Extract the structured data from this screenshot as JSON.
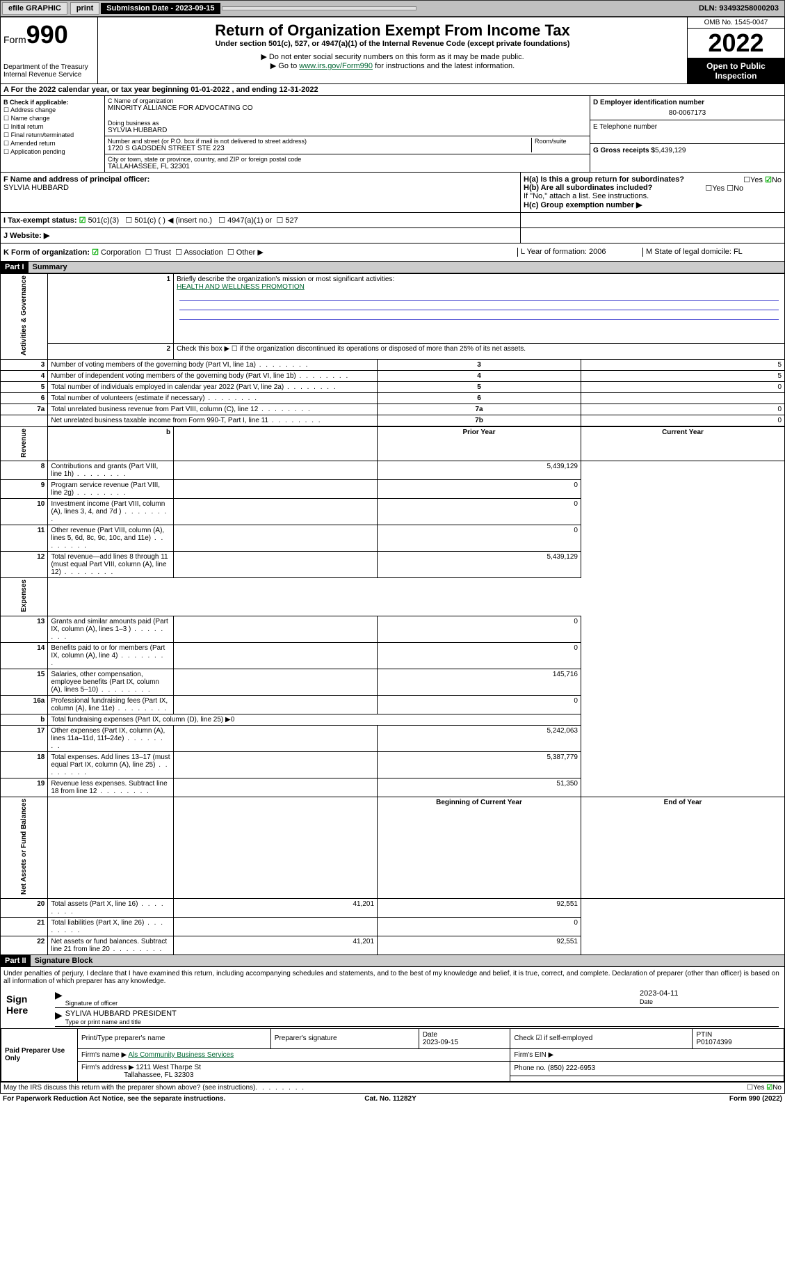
{
  "topbar": {
    "efile": "efile GRAPHIC",
    "print": "print",
    "sub_label": "Submission Date - 2023-09-15",
    "dln": "DLN: 93493258000203"
  },
  "header": {
    "form_word": "Form",
    "form_num": "990",
    "dept": "Department of the Treasury",
    "irs": "Internal Revenue Service",
    "title": "Return of Organization Exempt From Income Tax",
    "sub1": "Under section 501(c), 527, or 4947(a)(1) of the Internal Revenue Code (except private foundations)",
    "sub2": "▶ Do not enter social security numbers on this form as it may be made public.",
    "sub3_pre": "▶ Go to ",
    "sub3_link": "www.irs.gov/Form990",
    "sub3_post": " for instructions and the latest information.",
    "omb": "OMB No. 1545-0047",
    "year": "2022",
    "open": "Open to Public Inspection"
  },
  "rowA": "A For the 2022 calendar year, or tax year beginning 01-01-2022   , and ending 12-31-2022",
  "colB": {
    "hdr": "B Check if applicable:",
    "opts": [
      "Address change",
      "Name change",
      "Initial return",
      "Final return/terminated",
      "Amended return",
      "Application pending"
    ]
  },
  "colC": {
    "name_lbl": "C Name of organization",
    "name": "MINORITY ALLIANCE FOR ADVOCATING CO",
    "dba_lbl": "Doing business as",
    "dba": "SYLVIA HUBBARD",
    "addr_lbl": "Number and street (or P.O. box if mail is not delivered to street address)",
    "room_lbl": "Room/suite",
    "addr": "1720 S GADSDEN STREET STE 223",
    "city_lbl": "City or town, state or province, country, and ZIP or foreign postal code",
    "city": "TALLAHASSEE, FL  32301"
  },
  "colDE": {
    "d_lbl": "D Employer identification number",
    "d_val": "80-0067173",
    "e_lbl": "E Telephone number",
    "g_lbl": "G Gross receipts $",
    "g_val": "5,439,129"
  },
  "rowF": {
    "f_lbl": "F  Name and address of principal officer:",
    "f_val": "SYLVIA HUBBARD",
    "ha": "H(a)  Is this a group return for subordinates?",
    "hb": "H(b)  Are all subordinates included?",
    "hb_note": "If \"No,\" attach a list. See instructions.",
    "hc": "H(c)  Group exemption number ▶",
    "yes": "Yes",
    "no": "No"
  },
  "rowI": {
    "lbl": "I   Tax-exempt status:",
    "opts": [
      "501(c)(3)",
      "501(c) (  ) ◀ (insert no.)",
      "4947(a)(1) or",
      "527"
    ]
  },
  "rowJ": "J   Website: ▶",
  "rowK": {
    "lbl": "K Form of organization:",
    "opts": [
      "Corporation",
      "Trust",
      "Association",
      "Other ▶"
    ],
    "l": "L Year of formation: 2006",
    "m": "M State of legal domicile: FL"
  },
  "part1": {
    "hdr": "Part I",
    "title": "Summary",
    "verts": [
      "Activities & Governance",
      "Revenue",
      "Expenses",
      "Net Assets or Fund Balances"
    ],
    "line1": "Briefly describe the organization's mission or most significant activities:",
    "line1v": "HEALTH AND WELLNESS PROMOTION",
    "line2": "Check this box ▶ ☐  if the organization discontinued its operations or disposed of more than 25% of its net assets.",
    "rows_gov": [
      {
        "n": "3",
        "d": "Number of voting members of the governing body (Part VI, line 1a)",
        "b": "3",
        "v": "5"
      },
      {
        "n": "4",
        "d": "Number of independent voting members of the governing body (Part VI, line 1b)",
        "b": "4",
        "v": "5"
      },
      {
        "n": "5",
        "d": "Total number of individuals employed in calendar year 2022 (Part V, line 2a)",
        "b": "5",
        "v": "0"
      },
      {
        "n": "6",
        "d": "Total number of volunteers (estimate if necessary)",
        "b": "6",
        "v": ""
      },
      {
        "n": "7a",
        "d": "Total unrelated business revenue from Part VIII, column (C), line 12",
        "b": "7a",
        "v": "0"
      },
      {
        "n": "",
        "d": "Net unrelated business taxable income from Form 990-T, Part I, line 11",
        "b": "7b",
        "v": "0"
      }
    ],
    "hdr_prior": "Prior Year",
    "hdr_curr": "Current Year",
    "rows_rev": [
      {
        "n": "8",
        "d": "Contributions and grants (Part VIII, line 1h)",
        "p": "",
        "c": "5,439,129"
      },
      {
        "n": "9",
        "d": "Program service revenue (Part VIII, line 2g)",
        "p": "",
        "c": "0"
      },
      {
        "n": "10",
        "d": "Investment income (Part VIII, column (A), lines 3, 4, and 7d )",
        "p": "",
        "c": "0"
      },
      {
        "n": "11",
        "d": "Other revenue (Part VIII, column (A), lines 5, 6d, 8c, 9c, 10c, and 11e)",
        "p": "",
        "c": "0"
      },
      {
        "n": "12",
        "d": "Total revenue—add lines 8 through 11 (must equal Part VIII, column (A), line 12)",
        "p": "",
        "c": "5,439,129"
      }
    ],
    "rows_exp": [
      {
        "n": "13",
        "d": "Grants and similar amounts paid (Part IX, column (A), lines 1–3 )",
        "p": "",
        "c": "0"
      },
      {
        "n": "14",
        "d": "Benefits paid to or for members (Part IX, column (A), line 4)",
        "p": "",
        "c": "0"
      },
      {
        "n": "15",
        "d": "Salaries, other compensation, employee benefits (Part IX, column (A), lines 5–10)",
        "p": "",
        "c": "145,716"
      },
      {
        "n": "16a",
        "d": "Professional fundraising fees (Part IX, column (A), line 11e)",
        "p": "",
        "c": "0"
      },
      {
        "n": "b",
        "d": "Total fundraising expenses (Part IX, column (D), line 25) ▶0",
        "p": "",
        "c": "",
        "nosplit": true
      },
      {
        "n": "17",
        "d": "Other expenses (Part IX, column (A), lines 11a–11d, 11f–24e)",
        "p": "",
        "c": "5,242,063"
      },
      {
        "n": "18",
        "d": "Total expenses. Add lines 13–17 (must equal Part IX, column (A), line 25)",
        "p": "",
        "c": "5,387,779"
      },
      {
        "n": "19",
        "d": "Revenue less expenses. Subtract line 18 from line 12",
        "p": "",
        "c": "51,350"
      }
    ],
    "hdr_beg": "Beginning of Current Year",
    "hdr_end": "End of Year",
    "rows_net": [
      {
        "n": "20",
        "d": "Total assets (Part X, line 16)",
        "p": "41,201",
        "c": "92,551"
      },
      {
        "n": "21",
        "d": "Total liabilities (Part X, line 26)",
        "p": "",
        "c": "0"
      },
      {
        "n": "22",
        "d": "Net assets or fund balances. Subtract line 21 from line 20",
        "p": "41,201",
        "c": "92,551"
      }
    ]
  },
  "part2": {
    "hdr": "Part II",
    "title": "Signature Block",
    "decl": "Under penalties of perjury, I declare that I have examined this return, including accompanying schedules and statements, and to the best of my knowledge and belief, it is true, correct, and complete. Declaration of preparer (other than officer) is based on all information of which preparer has any knowledge.",
    "sign_here": "Sign Here",
    "sig_off": "Signature of officer",
    "date": "Date",
    "date_v": "2023-04-11",
    "name_title": "SYLIVA HUBBARD  PRESIDENT",
    "name_lbl": "Type or print name and title",
    "paid": "Paid Preparer Use Only",
    "pp_name_lbl": "Print/Type preparer's name",
    "pp_sig_lbl": "Preparer's signature",
    "pp_date_lbl": "Date",
    "pp_date": "2023-09-15",
    "pp_check": "Check ☑ if self-employed",
    "ptin_lbl": "PTIN",
    "ptin": "P01074399",
    "firm_name_lbl": "Firm's name    ▶",
    "firm_name": "Als Community Business Services",
    "firm_ein_lbl": "Firm's EIN ▶",
    "firm_addr_lbl": "Firm's address ▶",
    "firm_addr1": "1211 West Tharpe St",
    "firm_addr2": "Tallahassee, FL  32303",
    "phone_lbl": "Phone no.",
    "phone": "(850) 222-6953"
  },
  "footer": {
    "discuss": "May the IRS discuss this return with the preparer shown above? (see instructions)",
    "paperwork": "For Paperwork Reduction Act Notice, see the separate instructions.",
    "cat": "Cat. No. 11282Y",
    "form": "Form 990 (2022)"
  }
}
